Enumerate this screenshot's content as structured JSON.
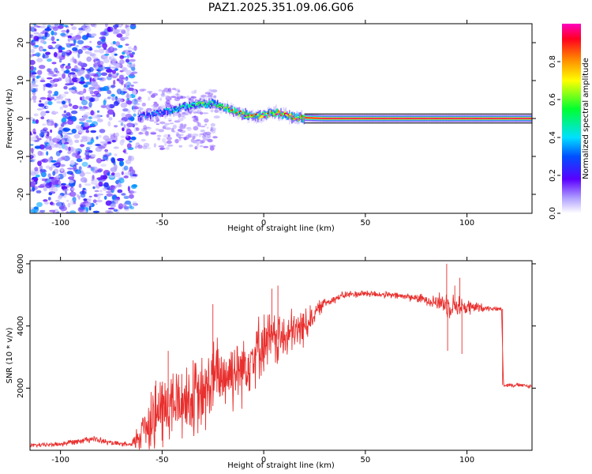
{
  "title": "PAZ1.2025.351.09.06.G06",
  "chart_data": [
    {
      "type": "heatmap",
      "title": "PAZ1.2025.351.09.06.G06",
      "xlabel": "Height of straight line (km)",
      "ylabel": "Frequency (Hz)",
      "xlim": [
        -115,
        132
      ],
      "ylim": [
        -25,
        25
      ],
      "xticks": [
        -100,
        -50,
        0,
        50,
        100
      ],
      "yticks": [
        -20,
        -10,
        0,
        10,
        20
      ],
      "colorbar": {
        "label": "Normalized spectral amplitude",
        "range": [
          0.0,
          1.0
        ],
        "ticks": [
          0.0,
          0.2,
          0.4,
          0.6,
          0.8
        ],
        "tick_labels": [
          "0.0",
          "0.2",
          "0.4",
          "0.6",
          "0.8"
        ]
      },
      "noise_region_x": [
        -115,
        -63
      ],
      "signal_ridge": {
        "x": [
          -62,
          -55,
          -50,
          -45,
          -40,
          -35,
          -30,
          -25,
          -20,
          -15,
          -10,
          -5,
          0,
          5,
          10,
          15,
          20,
          30,
          50,
          80,
          100,
          132
        ],
        "frequency": [
          0.5,
          1.0,
          1.8,
          2.2,
          3.0,
          3.5,
          3.8,
          4.0,
          3.0,
          2.0,
          1.0,
          0.5,
          1.0,
          1.5,
          1.0,
          0.3,
          0.2,
          0.0,
          0.0,
          0.0,
          0.0,
          0.0
        ],
        "amplitude": [
          0.25,
          0.35,
          0.35,
          0.45,
          0.5,
          0.55,
          0.6,
          0.6,
          0.65,
          0.75,
          0.75,
          0.8,
          0.85,
          0.88,
          0.9,
          0.9,
          0.92,
          0.95,
          0.95,
          0.95,
          0.95,
          0.95
        ]
      }
    },
    {
      "type": "line",
      "xlabel": "Height of straight line (km)",
      "ylabel": "SNR (10 * v/v)",
      "xlim": [
        -115,
        132
      ],
      "ylim": [
        0,
        6100
      ],
      "xticks": [
        -100,
        -50,
        0,
        50,
        100
      ],
      "yticks": [
        2000,
        4000,
        6000
      ],
      "series_color": "#e8302e",
      "envelope": {
        "x": [
          -115,
          -100,
          -85,
          -75,
          -65,
          -62,
          -58,
          -50,
          -40,
          -30,
          -25,
          -20,
          -10,
          0,
          10,
          20,
          25,
          30,
          40,
          50,
          60,
          70,
          80,
          90,
          100,
          110,
          115,
          117,
          118,
          125,
          132
        ],
        "mean": [
          150,
          200,
          380,
          230,
          170,
          400,
          900,
          1300,
          1600,
          1700,
          2300,
          2400,
          2700,
          3500,
          3600,
          4000,
          4400,
          4750,
          5000,
          5050,
          5000,
          4950,
          4850,
          4700,
          4600,
          4580,
          4550,
          4550,
          2100,
          2100,
          2050
        ],
        "spread": [
          80,
          100,
          140,
          100,
          80,
          600,
          1200,
          1600,
          1500,
          1600,
          1600,
          1500,
          1400,
          1200,
          1000,
          800,
          400,
          200,
          150,
          150,
          130,
          150,
          200,
          500,
          350,
          100,
          80,
          80,
          80,
          80,
          80
        ]
      },
      "spikes": [
        {
          "x": 90,
          "value": 6000
        },
        {
          "x": 90.5,
          "value": 3200
        },
        {
          "x": 96.5,
          "value": 5550
        },
        {
          "x": 97.5,
          "value": 3100
        },
        {
          "x": 94,
          "value": 5300
        },
        {
          "x": -25,
          "value": 4700
        },
        {
          "x": 7,
          "value": 5300
        },
        {
          "x": 4,
          "value": 5200
        },
        {
          "x": -47,
          "value": 3200
        }
      ]
    }
  ]
}
